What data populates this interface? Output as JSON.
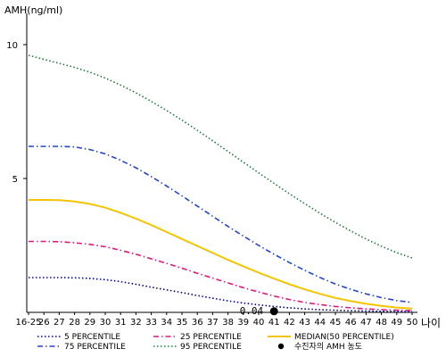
{
  "chart_data": {
    "type": "line",
    "ylabel": "AMH(ng/ml)",
    "xlabel": "나이",
    "ylim": [
      0,
      11
    ],
    "yticks": [
      5,
      10
    ],
    "x_tick_labels": [
      "16-25",
      "26",
      "27",
      "28",
      "29",
      "30",
      "31",
      "32",
      "33",
      "34",
      "35",
      "36",
      "37",
      "38",
      "39",
      "40",
      "41",
      "42",
      "43",
      "44",
      "45",
      "46",
      "47",
      "48",
      "49",
      "50"
    ],
    "grid": false,
    "legend_position": "bottom",
    "series": [
      {
        "name": "5 PERCENTILE",
        "color": "#000080",
        "style": "dotted",
        "values": [
          1.3,
          1.3,
          1.3,
          1.29,
          1.27,
          1.22,
          1.15,
          1.05,
          0.94,
          0.84,
          0.74,
          0.63,
          0.53,
          0.43,
          0.35,
          0.28,
          0.22,
          0.17,
          0.13,
          0.1,
          0.08,
          0.06,
          0.05,
          0.04,
          0.03,
          0.03
        ]
      },
      {
        "name": "25 PERCENTILE",
        "color": "#e0187c",
        "style": "dashdot",
        "values": [
          2.65,
          2.65,
          2.64,
          2.6,
          2.54,
          2.45,
          2.32,
          2.17,
          2.0,
          1.83,
          1.65,
          1.46,
          1.28,
          1.1,
          0.92,
          0.76,
          0.61,
          0.48,
          0.37,
          0.29,
          0.22,
          0.17,
          0.13,
          0.1,
          0.08,
          0.07
        ]
      },
      {
        "name": "MEDIAN(50 PERCENTILE)",
        "color": "#f5c400",
        "style": "solid",
        "values": [
          4.2,
          4.2,
          4.19,
          4.14,
          4.05,
          3.91,
          3.72,
          3.5,
          3.26,
          3.0,
          2.74,
          2.48,
          2.22,
          1.96,
          1.72,
          1.48,
          1.26,
          1.05,
          0.86,
          0.69,
          0.54,
          0.42,
          0.32,
          0.24,
          0.18,
          0.14
        ]
      },
      {
        "name": "75 PERCENTILE",
        "color": "#2346c8",
        "style": "dashdot",
        "values": [
          6.2,
          6.2,
          6.2,
          6.18,
          6.08,
          5.92,
          5.68,
          5.4,
          5.07,
          4.72,
          4.35,
          3.97,
          3.59,
          3.21,
          2.85,
          2.5,
          2.17,
          1.86,
          1.57,
          1.3,
          1.06,
          0.86,
          0.69,
          0.55,
          0.44,
          0.37
        ]
      },
      {
        "name": "95 PERCENTILE",
        "color": "#1e7a3c",
        "style": "dotted",
        "values": [
          9.6,
          9.45,
          9.3,
          9.15,
          8.97,
          8.75,
          8.49,
          8.2,
          7.88,
          7.54,
          7.18,
          6.8,
          6.41,
          6.01,
          5.61,
          5.21,
          4.82,
          4.43,
          4.06,
          3.7,
          3.36,
          3.04,
          2.74,
          2.47,
          2.23,
          2.03
        ]
      }
    ],
    "marker": {
      "name": "수진자의 AMH 농도",
      "x": "41",
      "y": 0.04,
      "label": "0.04",
      "color": "#000000"
    },
    "legend": [
      {
        "series": "5 PERCENTILE",
        "text": "5 PERCENTILE"
      },
      {
        "series": "25 PERCENTILE",
        "text": "25 PERCENTILE"
      },
      {
        "series": "MEDIAN(50 PERCENTILE)",
        "text": "MEDIAN(50 PERCENTILE)"
      },
      {
        "series": "75 PERCENTILE",
        "text": "75 PERCENTILE"
      },
      {
        "series": "95 PERCENTILE",
        "text": "95 PERCENTILE"
      },
      {
        "series": "marker",
        "text": "수진자의 AMH 농도"
      }
    ]
  }
}
